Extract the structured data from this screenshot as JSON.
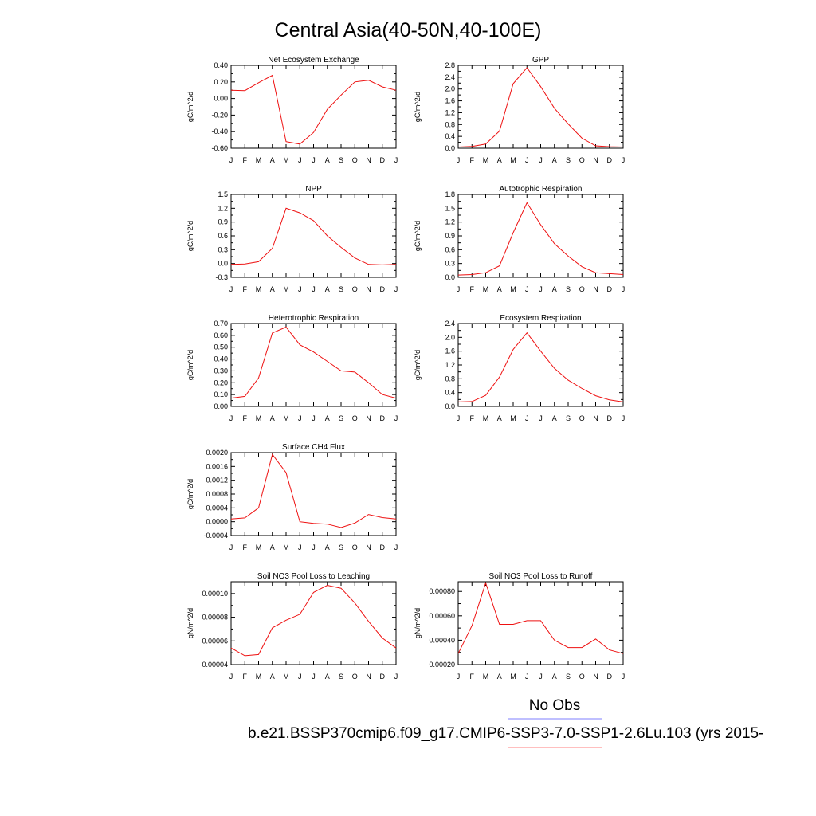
{
  "title": "Central Asia(40-50N,40-100E)",
  "legend": {
    "obs_label": "No Obs",
    "case_label": "b.e21.BSSP370cmip6.f09_g17.CMIP6-SSP3-7.0-SSP1-2.6Lu.103 (yrs 2015-",
    "obs_color": "#7f7fff",
    "case_color": "#ff7f7f"
  },
  "line_color": "#ee1111",
  "chart_data": [
    {
      "type": "line",
      "title": "Net Ecosystem Exchange",
      "ylabel": "gC/m^2/d",
      "months": [
        "J",
        "F",
        "M",
        "A",
        "M",
        "J",
        "J",
        "A",
        "S",
        "O",
        "N",
        "D",
        "J"
      ],
      "ylim": [
        -0.6,
        0.4
      ],
      "yticks": [
        "0.40",
        "0.20",
        "0.00",
        "-0.20",
        "-0.40",
        "-0.60"
      ],
      "series": [
        {
          "values": [
            0.1,
            0.095,
            0.19,
            0.28,
            -0.52,
            -0.55,
            -0.41,
            -0.13,
            0.04,
            0.2,
            0.22,
            0.14,
            0.1
          ]
        }
      ]
    },
    {
      "type": "line",
      "title": "GPP",
      "ylabel": "gC/m^2/d",
      "months": [
        "J",
        "F",
        "M",
        "A",
        "M",
        "J",
        "J",
        "A",
        "S",
        "O",
        "N",
        "D",
        "J"
      ],
      "ylim": [
        0.0,
        2.8
      ],
      "yticks": [
        "2.8",
        "2.4",
        "2.0",
        "1.6",
        "1.2",
        "0.8",
        "0.4",
        "0.0"
      ],
      "series": [
        {
          "values": [
            0.04,
            0.06,
            0.14,
            0.58,
            2.18,
            2.72,
            2.08,
            1.35,
            0.82,
            0.34,
            0.08,
            0.05,
            0.04
          ]
        }
      ]
    },
    {
      "type": "line",
      "title": "NPP",
      "ylabel": "gC/m^2/d",
      "months": [
        "J",
        "F",
        "M",
        "A",
        "M",
        "J",
        "J",
        "A",
        "S",
        "O",
        "N",
        "D",
        "J"
      ],
      "ylim": [
        -0.3,
        1.5
      ],
      "yticks": [
        "1.5",
        "1.2",
        "0.9",
        "0.6",
        "0.3",
        "0.0",
        "-0.3"
      ],
      "series": [
        {
          "values": [
            -0.02,
            -0.01,
            0.04,
            0.33,
            1.2,
            1.1,
            0.93,
            0.6,
            0.35,
            0.12,
            -0.02,
            -0.03,
            -0.02
          ]
        }
      ]
    },
    {
      "type": "line",
      "title": "Autotrophic Respiration",
      "ylabel": "gC/m^2/d",
      "months": [
        "J",
        "F",
        "M",
        "A",
        "M",
        "J",
        "J",
        "A",
        "S",
        "O",
        "N",
        "D",
        "J"
      ],
      "ylim": [
        0.0,
        1.8
      ],
      "yticks": [
        "1.8",
        "1.5",
        "1.2",
        "0.9",
        "0.6",
        "0.3",
        "0.0"
      ],
      "series": [
        {
          "values": [
            0.05,
            0.06,
            0.1,
            0.25,
            0.97,
            1.62,
            1.14,
            0.73,
            0.46,
            0.23,
            0.1,
            0.08,
            0.06
          ]
        }
      ]
    },
    {
      "type": "line",
      "title": "Heterotrophic Respiration",
      "ylabel": "gC/m^2/d",
      "months": [
        "J",
        "F",
        "M",
        "A",
        "M",
        "J",
        "J",
        "A",
        "S",
        "O",
        "N",
        "D",
        "J"
      ],
      "ylim": [
        0.0,
        0.7
      ],
      "yticks": [
        "0.70",
        "0.60",
        "0.50",
        "0.40",
        "0.30",
        "0.20",
        "0.10",
        "0.00"
      ],
      "series": [
        {
          "values": [
            0.07,
            0.085,
            0.24,
            0.62,
            0.67,
            0.52,
            0.46,
            0.38,
            0.3,
            0.29,
            0.2,
            0.1,
            0.07
          ]
        }
      ]
    },
    {
      "type": "line",
      "title": "Ecosystem Respiration",
      "ylabel": "gC/m^2/d",
      "months": [
        "J",
        "F",
        "M",
        "A",
        "M",
        "J",
        "J",
        "A",
        "S",
        "O",
        "N",
        "D",
        "J"
      ],
      "ylim": [
        0.0,
        2.4
      ],
      "yticks": [
        "2.4",
        "2.0",
        "1.6",
        "1.2",
        "0.8",
        "0.4",
        "0.0"
      ],
      "series": [
        {
          "values": [
            0.13,
            0.14,
            0.32,
            0.85,
            1.65,
            2.13,
            1.6,
            1.1,
            0.76,
            0.52,
            0.31,
            0.19,
            0.13
          ]
        }
      ]
    },
    {
      "type": "line",
      "title": "Surface CH4 Flux",
      "ylabel": "gC/m^2/d",
      "months": [
        "J",
        "F",
        "M",
        "A",
        "M",
        "J",
        "J",
        "A",
        "S",
        "O",
        "N",
        "D",
        "J"
      ],
      "ylim": [
        -0.0004,
        0.002
      ],
      "yticks": [
        "0.0020",
        "0.0016",
        "0.0012",
        "0.0008",
        "0.0004",
        "0.0000",
        "-0.0004"
      ],
      "series": [
        {
          "values": [
            8e-05,
            0.00011,
            0.0004,
            0.00195,
            0.00142,
            0.0,
            -5e-05,
            -7e-05,
            -0.00017,
            -4e-05,
            0.00021,
            0.00012,
            8e-05
          ]
        }
      ]
    },
    {
      "type": "line",
      "title": "Soil NO3 Pool Loss to Leaching",
      "ylabel": "gN/m^2/d",
      "months": [
        "J",
        "F",
        "M",
        "A",
        "M",
        "J",
        "J",
        "A",
        "S",
        "O",
        "N",
        "D",
        "J"
      ],
      "ylim": [
        4e-05,
        0.00011
      ],
      "yticks": [
        "0.00010",
        "0.00008",
        "0.00006",
        "0.00004"
      ],
      "series": [
        {
          "values": [
            5.4e-05,
            4.75e-05,
            4.85e-05,
            7.1e-05,
            7.75e-05,
            8.25e-05,
            0.000101,
            0.000107,
            0.0001045,
            9.2e-05,
            7.65e-05,
            6.25e-05,
            5.4e-05
          ]
        }
      ]
    },
    {
      "type": "line",
      "title": "Soil NO3 Pool Loss to Runoff",
      "ylabel": "gN/m^2/d",
      "months": [
        "J",
        "F",
        "M",
        "A",
        "M",
        "J",
        "J",
        "A",
        "S",
        "O",
        "N",
        "D",
        "J"
      ],
      "ylim": [
        0.0002,
        0.00088
      ],
      "yticks": [
        "0.00080",
        "0.00060",
        "0.00040",
        "0.00020"
      ],
      "series": [
        {
          "values": [
            0.00029,
            0.00052,
            0.00087,
            0.00053,
            0.00053,
            0.00056,
            0.00056,
            0.0004,
            0.00034,
            0.00034,
            0.00041,
            0.00032,
            0.00029
          ]
        }
      ]
    }
  ]
}
